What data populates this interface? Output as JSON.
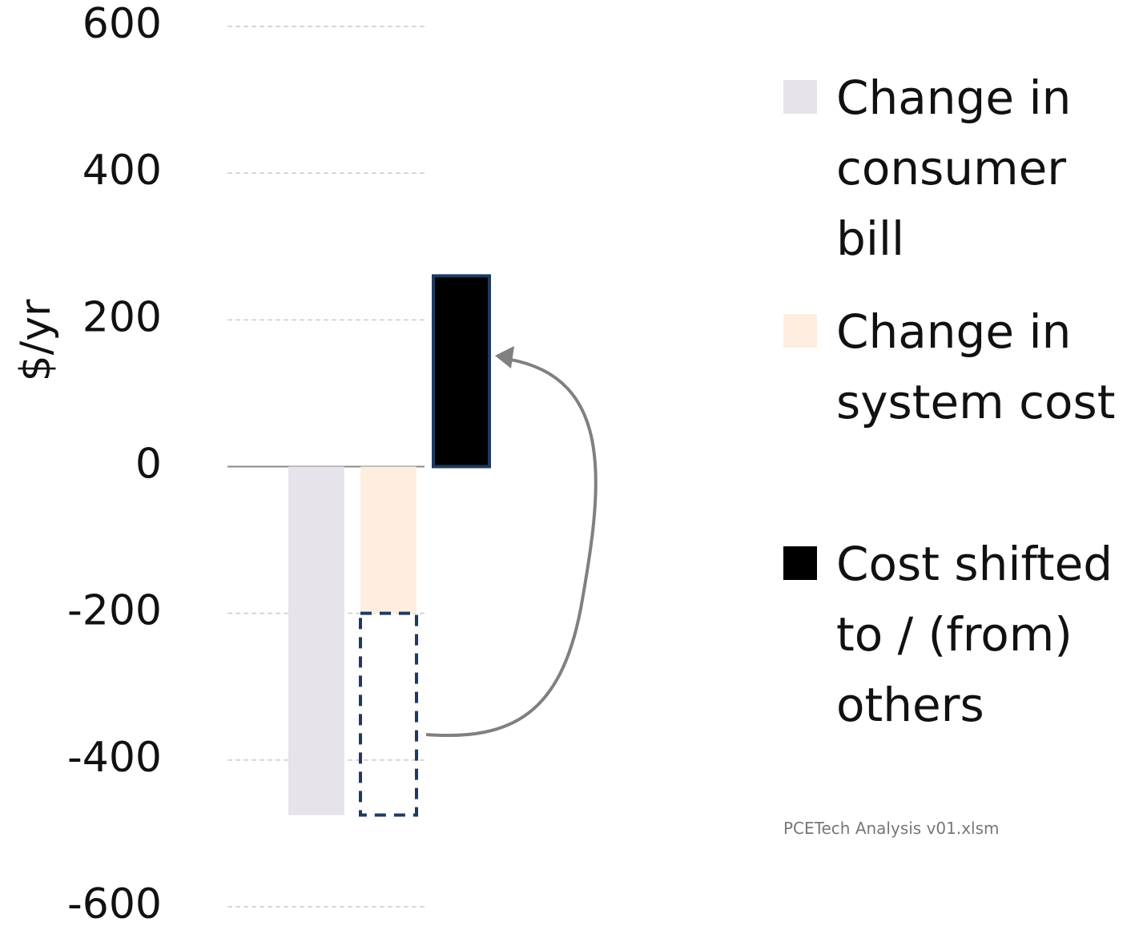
{
  "chart_data": {
    "type": "bar",
    "y_label": "$/yr",
    "series": [
      {
        "name": "Change in consumer bill",
        "color": "#e6e3ea",
        "values": [
          -475
        ]
      },
      {
        "name": "Change in system cost",
        "color": "#fdeee0",
        "values": [
          -200
        ]
      },
      {
        "name": "Cost shifted to / (from) others",
        "color": "#000000",
        "values": [
          260
        ]
      }
    ],
    "ylim": [
      -600,
      600
    ],
    "yticks": [
      -600,
      -400,
      -200,
      0,
      200,
      400,
      600
    ],
    "grid": true,
    "legend": "right",
    "note": "PCETech Analysis v01.xlsm"
  }
}
